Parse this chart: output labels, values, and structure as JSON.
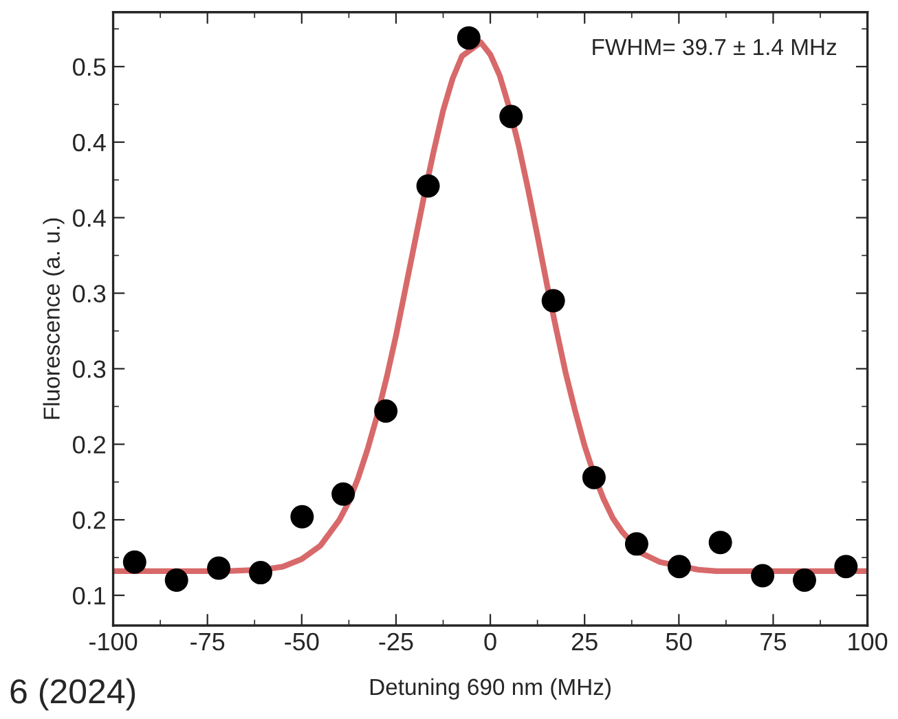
{
  "chart_data": {
    "type": "scatter",
    "xlabel": "Detuning 690 nm (MHz)",
    "ylabel": "Fluorescence (a. u.)",
    "annotations": [
      "FWHM= 39.7 ± 1.4 MHz",
      "6 (2024)"
    ],
    "xlim": [
      -100,
      100
    ],
    "xticks": [
      -100,
      -75,
      -50,
      -25,
      0,
      25,
      50,
      75,
      100
    ],
    "ylim": [
      0.08,
      0.486
    ],
    "yticks": [
      {
        "value": 0.1,
        "label": "0.1"
      },
      {
        "value": 0.15,
        "label": "0.2"
      },
      {
        "value": 0.2,
        "label": "0.2"
      },
      {
        "value": 0.25,
        "label": "0.3"
      },
      {
        "value": 0.3,
        "label": "0.3"
      },
      {
        "value": 0.35,
        "label": "0.4"
      },
      {
        "value": 0.4,
        "label": "0.4"
      },
      {
        "value": 0.45,
        "label": "0.5"
      }
    ],
    "grid": false,
    "series": [
      {
        "type": "line",
        "marker": "none",
        "color": "#d8696a",
        "x": [
          -100,
          -70,
          -60,
          -55,
          -50,
          -45,
          -40,
          -37.5,
          -35,
          -32.5,
          -30,
          -27.5,
          -25,
          -22.5,
          -20,
          -17.5,
          -15,
          -12.5,
          -10,
          -7.5,
          -2.5,
          0,
          2.5,
          5,
          7.5,
          10,
          12.5,
          15,
          17.5,
          20,
          22.5,
          25,
          27.5,
          30,
          32.5,
          35,
          40,
          45,
          55,
          60,
          100
        ],
        "values": [
          0.116,
          0.116,
          0.117,
          0.119,
          0.124,
          0.133,
          0.15,
          0.162,
          0.178,
          0.197,
          0.219,
          0.244,
          0.272,
          0.303,
          0.334,
          0.365,
          0.394,
          0.421,
          0.442,
          0.457,
          0.466,
          0.458,
          0.444,
          0.423,
          0.398,
          0.369,
          0.338,
          0.306,
          0.276,
          0.247,
          0.222,
          0.199,
          0.18,
          0.164,
          0.151,
          0.142,
          0.128,
          0.122,
          0.117,
          0.116,
          0.116
        ]
      },
      {
        "color": "#000000",
        "marker": "circle",
        "x": [
          -94.3,
          -83.2,
          -72.0,
          -60.9,
          -49.9,
          -39.0,
          -27.7,
          -16.5,
          -5.7,
          5.5,
          16.7,
          27.5,
          38.8,
          50.1,
          61.0,
          72.2,
          83.3,
          94.3
        ],
        "values": [
          0.122,
          0.11,
          0.118,
          0.115,
          0.152,
          0.167,
          0.222,
          0.371,
          0.469,
          0.417,
          0.295,
          0.178,
          0.134,
          0.119,
          0.135,
          0.113,
          0.11,
          0.119
        ]
      }
    ]
  }
}
